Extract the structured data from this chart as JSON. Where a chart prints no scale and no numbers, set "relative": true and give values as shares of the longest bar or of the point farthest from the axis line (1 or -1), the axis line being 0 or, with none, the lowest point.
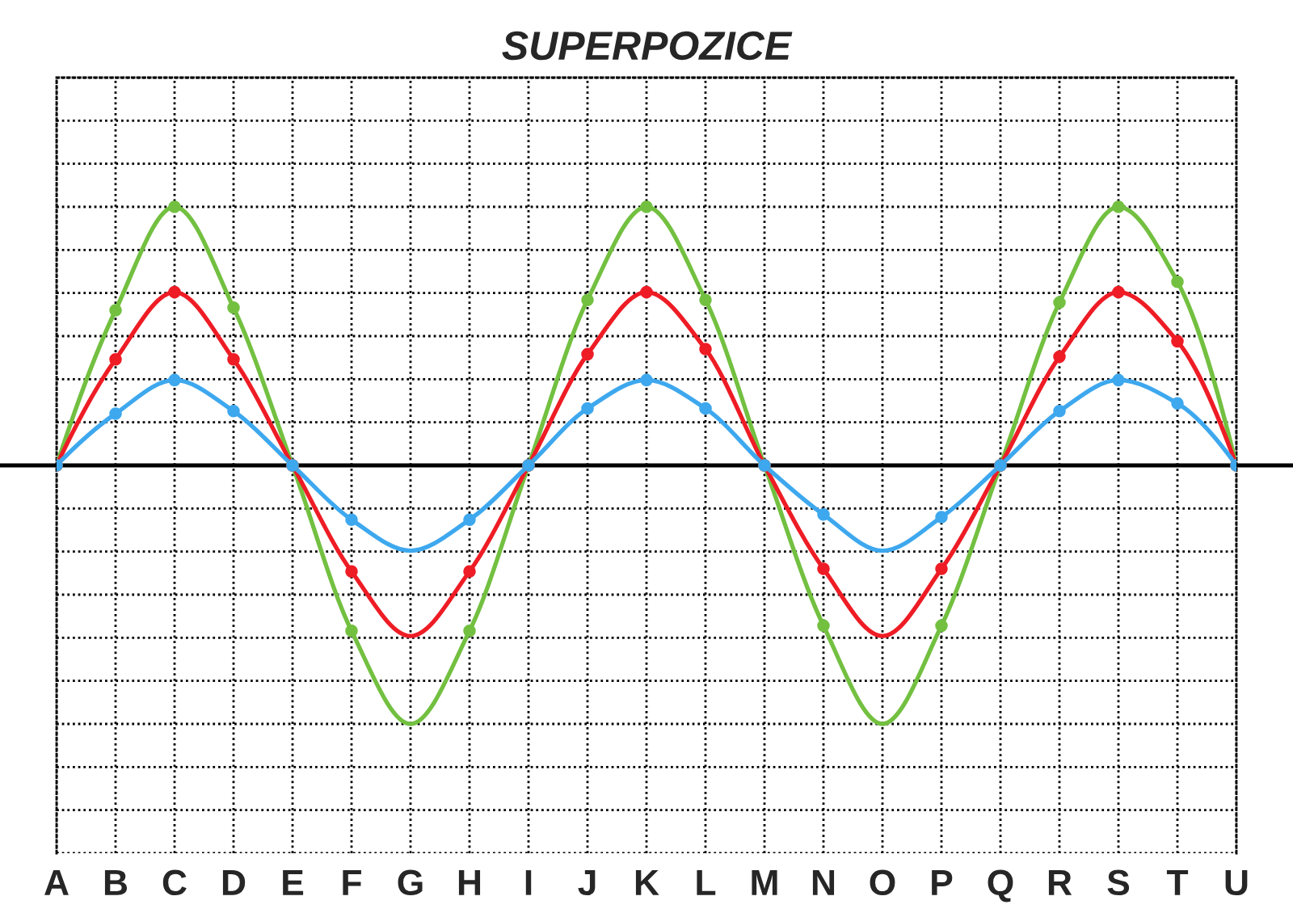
{
  "chart_data": {
    "type": "line",
    "title": "SUPERPOZICE",
    "relative": true,
    "grid": true,
    "marker": "circle",
    "line_style": "solid",
    "categories": [
      "A",
      "B",
      "C",
      "D",
      "E",
      "F",
      "G",
      "H",
      "I",
      "J",
      "K",
      "L",
      "M",
      "N",
      "O",
      "P",
      "Q",
      "R",
      "S",
      "T",
      "U"
    ],
    "series": [
      {
        "type": "line",
        "marker": "none",
        "color": "#73c041",
        "values": [
          0,
          0.6,
          1,
          0.61,
          0,
          -0.64,
          -1,
          -0.64,
          0,
          0.64,
          1,
          0.64,
          0,
          -0.62,
          -1,
          -0.62,
          0,
          0.63,
          1,
          0.71,
          0
        ]
      },
      {
        "type": "line",
        "marker": "none",
        "color": "#ee1c25",
        "values": [
          0,
          0.41,
          0.67,
          0.41,
          0,
          -0.41,
          -0.66,
          -0.41,
          0,
          0.43,
          0.67,
          0.45,
          0,
          -0.4,
          -0.66,
          -0.4,
          0,
          0.42,
          0.67,
          0.48,
          0
        ]
      },
      {
        "type": "line",
        "marker": "none",
        "color": "#3ea8ee",
        "values": [
          0,
          0.2,
          0.33,
          0.21,
          0,
          -0.21,
          -0.33,
          -0.21,
          0,
          0.22,
          0.33,
          0.22,
          0,
          -0.19,
          -0.33,
          -0.2,
          0,
          0.21,
          0.33,
          0.24,
          0
        ]
      },
      {
        "type": "scatter",
        "color": "#73c041",
        "values": [
          0,
          0.6,
          1,
          0.61,
          0,
          -0.64,
          null,
          -0.64,
          0,
          0.64,
          1,
          0.64,
          0,
          -0.62,
          null,
          -0.62,
          0,
          0.63,
          1,
          0.71,
          0
        ]
      },
      {
        "type": "scatter",
        "color": "#ee1c25",
        "values": [
          0,
          0.41,
          0.67,
          0.41,
          0,
          -0.41,
          null,
          -0.41,
          0,
          0.43,
          0.67,
          0.45,
          0,
          -0.4,
          null,
          -0.4,
          0,
          0.42,
          0.67,
          0.48,
          0
        ]
      },
      {
        "type": "scatter",
        "color": "#3ea8ee",
        "values": [
          0,
          0.2,
          0.33,
          0.21,
          0,
          -0.21,
          null,
          -0.21,
          0,
          0.22,
          0.33,
          0.22,
          0,
          -0.19,
          null,
          -0.2,
          0,
          0.21,
          0.33,
          0.24,
          0
        ]
      }
    ]
  }
}
